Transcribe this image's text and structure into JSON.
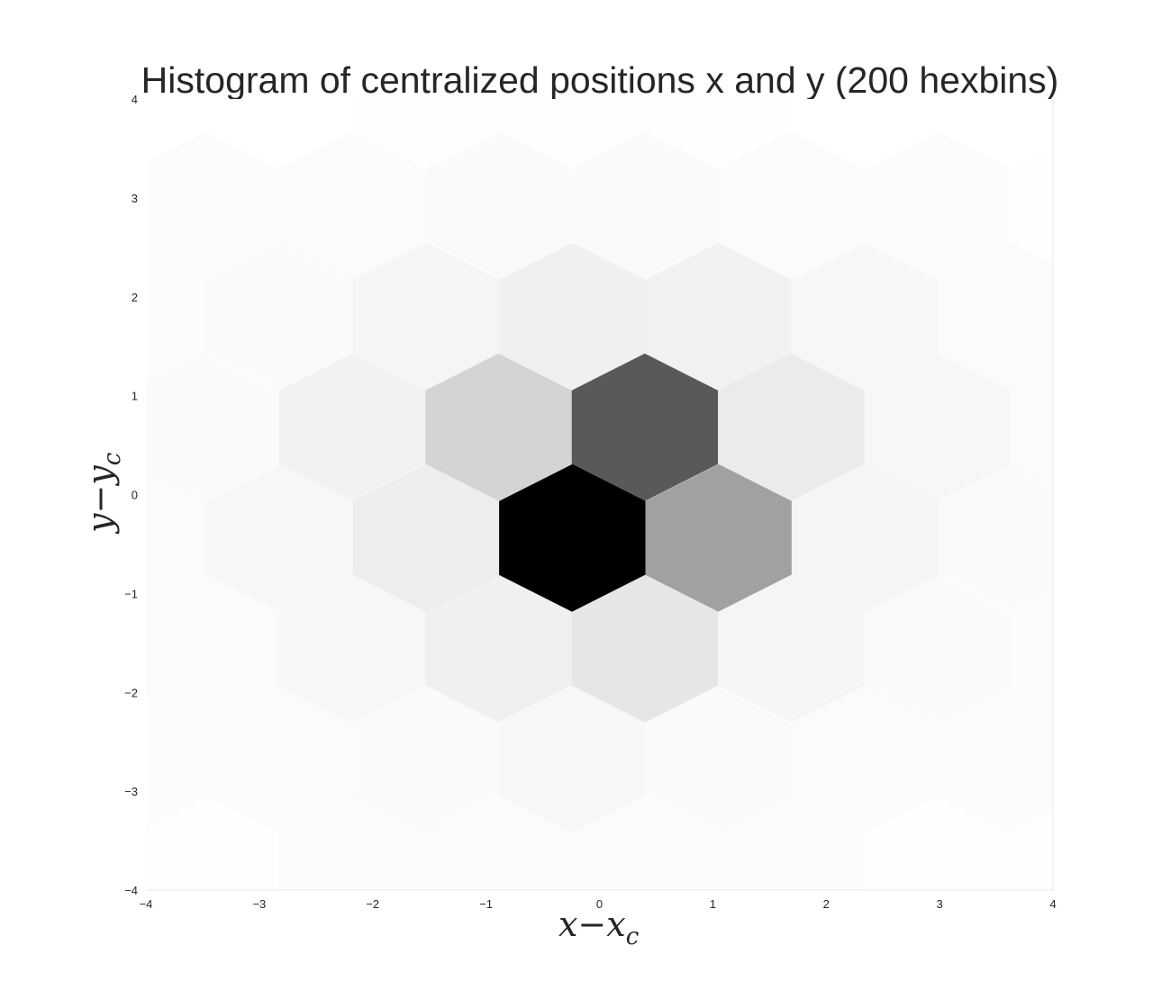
{
  "chart_data": {
    "type": "heatmap",
    "title": "Histogram of centralized positions x and y (200 hexbins)",
    "xlabel": "x−x",
    "xlabel_sub": "c",
    "ylabel": "y−y",
    "ylabel_sub": "c",
    "xlim": [
      -4,
      4
    ],
    "ylim": [
      -4,
      4
    ],
    "xticks": [
      "−4",
      "−3",
      "−2",
      "−1",
      "0",
      "1",
      "2",
      "3",
      "4"
    ],
    "yticks": [
      "−4",
      "−3",
      "−2",
      "−1",
      "0",
      "1",
      "2",
      "3",
      "4"
    ],
    "xtick_values": [
      -4,
      -3,
      -2,
      -1,
      0,
      1,
      2,
      3,
      4
    ],
    "ytick_values": [
      -4,
      -3,
      -2,
      -1,
      0,
      1,
      2,
      3,
      4
    ],
    "grid": false,
    "colormap": "Greys",
    "hex_width": 1.29,
    "hex_row_step": 1.12,
    "color_scale": "0 = white, 1 = black",
    "bins": [
      {
        "x": -4.11,
        "y": 4.04,
        "v": 0.0
      },
      {
        "x": -2.82,
        "y": 4.04,
        "v": 0.0
      },
      {
        "x": -1.53,
        "y": 4.04,
        "v": 0.005
      },
      {
        "x": -0.24,
        "y": 4.04,
        "v": 0.005
      },
      {
        "x": 1.05,
        "y": 4.04,
        "v": 0.005
      },
      {
        "x": 2.34,
        "y": 4.04,
        "v": 0.0
      },
      {
        "x": 3.63,
        "y": 4.04,
        "v": 0.0
      },
      {
        "x": -3.47,
        "y": 2.92,
        "v": 0.01
      },
      {
        "x": -2.18,
        "y": 2.92,
        "v": 0.015
      },
      {
        "x": -0.89,
        "y": 2.92,
        "v": 0.02
      },
      {
        "x": 0.4,
        "y": 2.92,
        "v": 0.02
      },
      {
        "x": 1.69,
        "y": 2.92,
        "v": 0.015
      },
      {
        "x": 2.98,
        "y": 2.92,
        "v": 0.01
      },
      {
        "x": 4.27,
        "y": 2.92,
        "v": 0.005
      },
      {
        "x": -4.11,
        "y": 1.8,
        "v": 0.01
      },
      {
        "x": -2.82,
        "y": 1.8,
        "v": 0.02
      },
      {
        "x": -1.53,
        "y": 1.8,
        "v": 0.04
      },
      {
        "x": -0.24,
        "y": 1.8,
        "v": 0.06
      },
      {
        "x": 1.05,
        "y": 1.8,
        "v": 0.05
      },
      {
        "x": 2.34,
        "y": 1.8,
        "v": 0.03
      },
      {
        "x": 3.63,
        "y": 1.8,
        "v": 0.015
      },
      {
        "x": -3.47,
        "y": 0.68,
        "v": 0.02
      },
      {
        "x": -2.18,
        "y": 0.68,
        "v": 0.05
      },
      {
        "x": -0.89,
        "y": 0.68,
        "v": 0.17
      },
      {
        "x": 0.4,
        "y": 0.68,
        "v": 0.65
      },
      {
        "x": 1.69,
        "y": 0.68,
        "v": 0.08
      },
      {
        "x": 2.98,
        "y": 0.68,
        "v": 0.03
      },
      {
        "x": 4.27,
        "y": 0.68,
        "v": 0.015
      },
      {
        "x": -4.11,
        "y": -0.44,
        "v": 0.015
      },
      {
        "x": -2.82,
        "y": -0.44,
        "v": 0.03
      },
      {
        "x": -1.53,
        "y": -0.44,
        "v": 0.07
      },
      {
        "x": -0.24,
        "y": -0.44,
        "v": 1.0
      },
      {
        "x": 1.05,
        "y": -0.44,
        "v": 0.37
      },
      {
        "x": 2.34,
        "y": -0.44,
        "v": 0.04
      },
      {
        "x": 3.63,
        "y": -0.44,
        "v": 0.02
      },
      {
        "x": -3.47,
        "y": -1.56,
        "v": 0.015
      },
      {
        "x": -2.18,
        "y": -1.56,
        "v": 0.03
      },
      {
        "x": -0.89,
        "y": -1.56,
        "v": 0.06
      },
      {
        "x": 0.4,
        "y": -1.56,
        "v": 0.1
      },
      {
        "x": 1.69,
        "y": -1.56,
        "v": 0.04
      },
      {
        "x": 2.98,
        "y": -1.56,
        "v": 0.02
      },
      {
        "x": 4.27,
        "y": -1.56,
        "v": 0.01
      },
      {
        "x": -4.11,
        "y": -2.68,
        "v": 0.01
      },
      {
        "x": -2.82,
        "y": -2.68,
        "v": 0.015
      },
      {
        "x": -1.53,
        "y": -2.68,
        "v": 0.02
      },
      {
        "x": -0.24,
        "y": -2.68,
        "v": 0.03
      },
      {
        "x": 1.05,
        "y": -2.68,
        "v": 0.02
      },
      {
        "x": 2.34,
        "y": -2.68,
        "v": 0.015
      },
      {
        "x": 3.63,
        "y": -2.68,
        "v": 0.01
      },
      {
        "x": -3.47,
        "y": -3.8,
        "v": 0.005
      },
      {
        "x": -2.18,
        "y": -3.8,
        "v": 0.01
      },
      {
        "x": -0.89,
        "y": -3.8,
        "v": 0.01
      },
      {
        "x": 0.4,
        "y": -3.8,
        "v": 0.01
      },
      {
        "x": 1.69,
        "y": -3.8,
        "v": 0.01
      },
      {
        "x": 2.98,
        "y": -3.8,
        "v": 0.005
      },
      {
        "x": 4.27,
        "y": -3.8,
        "v": 0.005
      }
    ]
  }
}
